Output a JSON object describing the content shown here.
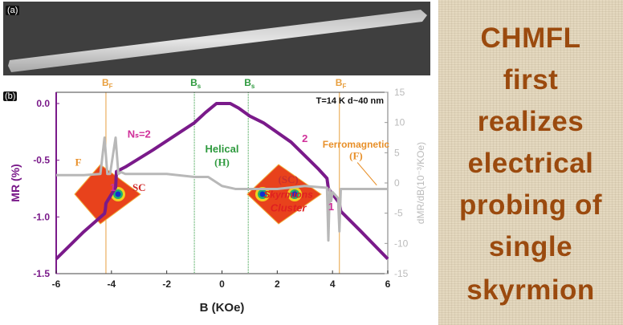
{
  "panel_a": {
    "label": "(a)"
  },
  "panel_b": {
    "label": "(b)"
  },
  "side_text": {
    "lines": [
      "CHMFL",
      "first",
      "realizes",
      "electrical",
      "probing of",
      "single",
      "skyrmion"
    ],
    "color": "#9b4a0e"
  },
  "chart_data": {
    "type": "line",
    "xlabel": "B (KOe)",
    "ylabel": "MR (%)",
    "y2label": "dMR/dB(10⁻³/KOe)",
    "xlim": [
      -6,
      6
    ],
    "ylim": [
      -1.5,
      0.05
    ],
    "y2lim": [
      -15,
      15
    ],
    "xticks": [
      "-6",
      "-4",
      "-2",
      "0",
      "2",
      "4",
      "6"
    ],
    "yticks": [
      "0.0",
      "-0.5",
      "-1.0",
      "-1.5"
    ],
    "y2ticks": [
      "15",
      "10",
      "5",
      "0",
      "-5",
      "-10",
      "-15"
    ],
    "condition": "T=14 K  d~40 nm",
    "vlines": [
      {
        "label": "B",
        "sub": "F",
        "x": -4.2,
        "color": "#e8a040"
      },
      {
        "label": "B",
        "sub": "s",
        "x": -1.0,
        "color": "#2e9a3e"
      },
      {
        "label": "B",
        "sub": "s",
        "x": 0.95,
        "color": "#2e9a3e"
      },
      {
        "label": "B",
        "sub": "F",
        "x": 4.25,
        "color": "#e8a040"
      }
    ],
    "annotations": [
      {
        "text": "F",
        "x": -5.2,
        "y": -0.55,
        "color": "#e8902a"
      },
      {
        "text": "Nₛ=2",
        "x": -3.0,
        "y": -0.3,
        "color": "#d0309a"
      },
      {
        "text": "1",
        "x": -3.95,
        "y": -0.77,
        "color": "#d0309a"
      },
      {
        "text": "SC",
        "x": -3.0,
        "y": -0.77,
        "color": "#d02828"
      },
      {
        "text": "Helical",
        "x": 0.0,
        "y": -0.43,
        "color": "#2e9a3e"
      },
      {
        "text": "(H)",
        "x": 0.0,
        "y": -0.55,
        "color": "#2e9a3e"
      },
      {
        "text": "(SC)",
        "x": 2.4,
        "y": -0.7,
        "color": "#c83030"
      },
      {
        "text": "Skyrmions",
        "x": 2.4,
        "y": -0.83,
        "color": "#e02020"
      },
      {
        "text": "Cluster",
        "x": 2.4,
        "y": -0.95,
        "color": "#e02020"
      },
      {
        "text": "2",
        "x": 3.0,
        "y": -0.34,
        "color": "#d0309a"
      },
      {
        "text": "Ferromagnetic",
        "x": 4.85,
        "y": -0.39,
        "color": "#e8902a"
      },
      {
        "text": "(F)",
        "x": 4.85,
        "y": -0.49,
        "color": "#e8902a"
      },
      {
        "text": "1",
        "x": 3.95,
        "y": -0.94,
        "color": "#d0309a"
      }
    ],
    "series": [
      {
        "name": "MR",
        "axis": "left",
        "color": "#7a1a8a",
        "x": [
          -6,
          -5,
          -4.25,
          -4.22,
          -4.2,
          -3.85,
          -3.82,
          -3.5,
          -2.5,
          -1.5,
          -1.0,
          -0.6,
          -0.2,
          0.3,
          0.6,
          1.0,
          1.5,
          2.5,
          3.5,
          3.8,
          3.85,
          4.1,
          4.25,
          4.3,
          5,
          6
        ],
        "y": [
          -1.37,
          -1.13,
          -0.97,
          -0.93,
          -0.88,
          -0.74,
          -0.6,
          -0.56,
          -0.41,
          -0.25,
          -0.17,
          -0.08,
          0.0,
          0.0,
          -0.04,
          -0.11,
          -0.17,
          -0.34,
          -0.58,
          -0.66,
          -0.75,
          -0.83,
          -0.88,
          -0.95,
          -1.12,
          -1.37
        ]
      },
      {
        "name": "dMR/dB",
        "axis": "right",
        "color": "#b8b8b8",
        "x": [
          -6,
          -5,
          -4.4,
          -4.25,
          -4.15,
          -4.05,
          -3.85,
          -3.75,
          -3.65,
          -3.5,
          -2,
          -1.0,
          -0.5,
          0,
          0.5,
          1.0,
          2,
          3,
          3.8,
          3.85,
          3.9,
          3.95,
          4.0,
          4.2,
          4.25,
          4.3,
          4.5,
          5,
          6
        ],
        "y": [
          1.3,
          1.3,
          1.5,
          7.5,
          1.5,
          1.5,
          7.5,
          1.5,
          1.8,
          1.5,
          1.5,
          1.0,
          1.0,
          -0.5,
          -1.0,
          -1.0,
          -1.0,
          -0.5,
          -0.8,
          -9.5,
          -1.0,
          -3.0,
          -1.5,
          -2.5,
          -8.0,
          -1.0,
          -1.0,
          -1.0,
          -1.0
        ]
      }
    ]
  }
}
